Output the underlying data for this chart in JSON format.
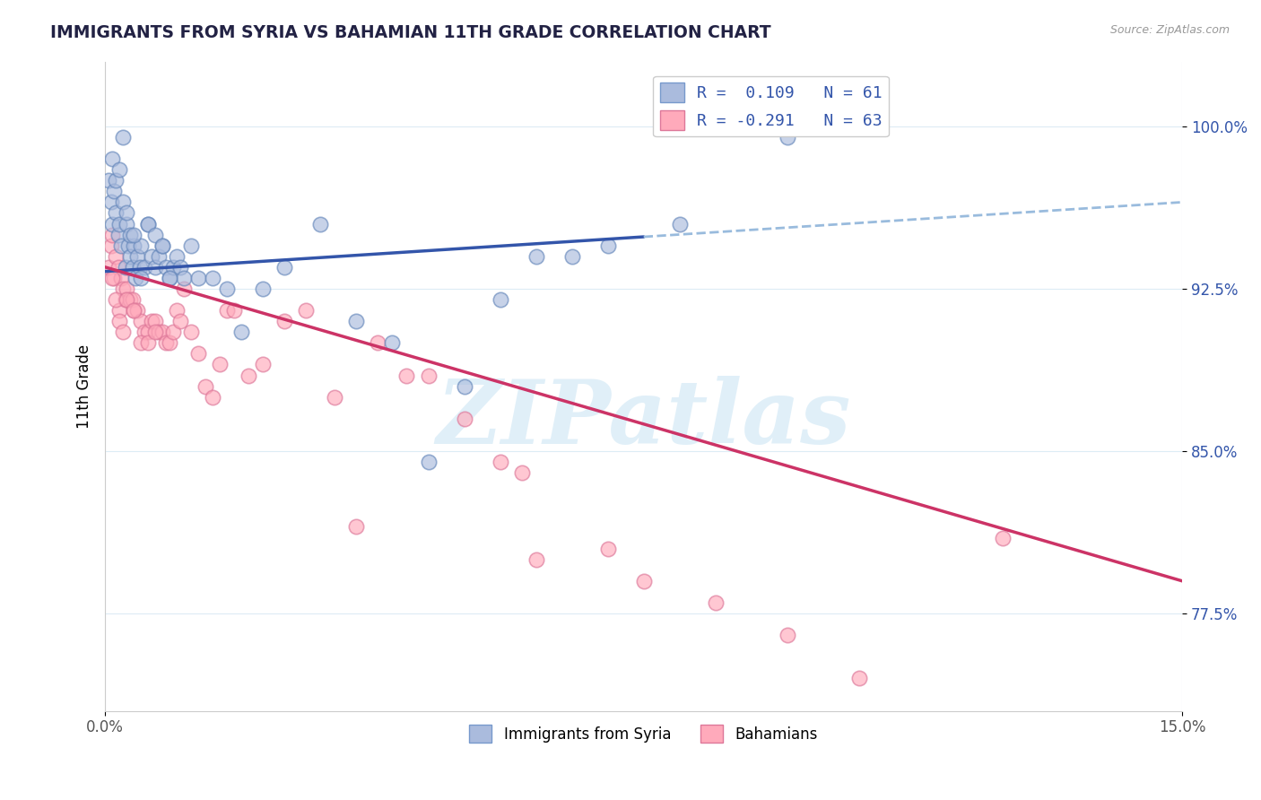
{
  "title": "IMMIGRANTS FROM SYRIA VS BAHAMIAN 11TH GRADE CORRELATION CHART",
  "source": "Source: ZipAtlas.com",
  "ylabel": "11th Grade",
  "xlim": [
    0.0,
    15.0
  ],
  "ylim": [
    73.0,
    103.0
  ],
  "yticks": [
    77.5,
    85.0,
    92.5,
    100.0
  ],
  "xticks": [
    0.0,
    15.0
  ],
  "xtick_labels": [
    "0.0%",
    "15.0%"
  ],
  "ytick_labels": [
    "77.5%",
    "85.0%",
    "92.5%",
    "100.0%"
  ],
  "legend_label1": "R =  0.109   N = 61",
  "legend_label2": "R = -0.291   N = 63",
  "legend_entry1": "Immigrants from Syria",
  "legend_entry2": "Bahamians",
  "blue_dot_color": "#AABBDD",
  "pink_dot_color": "#FFAABB",
  "blue_edge_color": "#6688BB",
  "pink_edge_color": "#DD7799",
  "blue_line_color": "#3355AA",
  "pink_line_color": "#CC3366",
  "dashed_line_color": "#99BBDD",
  "background_color": "#FFFFFF",
  "watermark": "ZIPatlas",
  "blue_trend_x0": 0.0,
  "blue_trend_y0": 93.3,
  "blue_trend_x1": 15.0,
  "blue_trend_y1": 96.5,
  "blue_solid_x_end": 7.5,
  "pink_trend_x0": 0.0,
  "pink_trend_y0": 93.5,
  "pink_trend_x1": 15.0,
  "pink_trend_y1": 79.0,
  "syria_x": [
    0.05,
    0.08,
    0.1,
    0.12,
    0.15,
    0.18,
    0.2,
    0.22,
    0.25,
    0.28,
    0.3,
    0.32,
    0.35,
    0.38,
    0.4,
    0.42,
    0.45,
    0.48,
    0.5,
    0.55,
    0.6,
    0.65,
    0.7,
    0.75,
    0.8,
    0.85,
    0.9,
    0.95,
    1.0,
    1.05,
    1.1,
    1.2,
    1.3,
    1.5,
    1.7,
    1.9,
    2.2,
    2.5,
    3.0,
    3.5,
    4.0,
    4.5,
    5.0,
    5.5,
    6.0,
    6.5,
    7.0,
    8.0,
    0.1,
    0.15,
    0.2,
    0.25,
    0.3,
    0.35,
    0.4,
    0.5,
    0.6,
    0.7,
    0.8,
    0.9,
    9.5
  ],
  "syria_y": [
    97.5,
    96.5,
    95.5,
    97.0,
    96.0,
    95.0,
    95.5,
    94.5,
    96.5,
    93.5,
    95.5,
    94.5,
    94.0,
    93.5,
    94.5,
    93.0,
    94.0,
    93.5,
    94.5,
    93.5,
    95.5,
    94.0,
    93.5,
    94.0,
    94.5,
    93.5,
    93.0,
    93.5,
    94.0,
    93.5,
    93.0,
    94.5,
    93.0,
    93.0,
    92.5,
    90.5,
    92.5,
    93.5,
    95.5,
    91.0,
    90.0,
    84.5,
    88.0,
    92.0,
    94.0,
    94.0,
    94.5,
    95.5,
    98.5,
    97.5,
    98.0,
    99.5,
    96.0,
    95.0,
    95.0,
    93.0,
    95.5,
    95.0,
    94.5,
    93.0,
    99.5
  ],
  "bahamas_x": [
    0.05,
    0.08,
    0.1,
    0.12,
    0.15,
    0.18,
    0.2,
    0.22,
    0.25,
    0.28,
    0.3,
    0.35,
    0.38,
    0.4,
    0.45,
    0.5,
    0.55,
    0.6,
    0.65,
    0.7,
    0.75,
    0.8,
    0.85,
    0.9,
    0.95,
    1.0,
    1.05,
    1.1,
    1.2,
    1.3,
    1.4,
    1.5,
    1.6,
    1.7,
    1.8,
    2.0,
    2.2,
    2.5,
    2.8,
    3.2,
    3.5,
    3.8,
    4.2,
    4.5,
    5.0,
    5.5,
    5.8,
    6.0,
    7.0,
    7.5,
    8.5,
    9.5,
    10.5,
    12.5,
    0.1,
    0.15,
    0.2,
    0.25,
    0.3,
    0.4,
    0.5,
    0.6,
    0.7
  ],
  "bahamas_y": [
    93.5,
    94.5,
    95.0,
    93.0,
    94.0,
    93.5,
    91.5,
    93.0,
    92.5,
    92.0,
    92.5,
    92.0,
    92.0,
    91.5,
    91.5,
    91.0,
    90.5,
    90.5,
    91.0,
    91.0,
    90.5,
    90.5,
    90.0,
    90.0,
    90.5,
    91.5,
    91.0,
    92.5,
    90.5,
    89.5,
    88.0,
    87.5,
    89.0,
    91.5,
    91.5,
    88.5,
    89.0,
    91.0,
    91.5,
    87.5,
    81.5,
    90.0,
    88.5,
    88.5,
    86.5,
    84.5,
    84.0,
    80.0,
    80.5,
    79.0,
    78.0,
    76.5,
    74.5,
    81.0,
    93.0,
    92.0,
    91.0,
    90.5,
    92.0,
    91.5,
    90.0,
    90.0,
    90.5
  ]
}
